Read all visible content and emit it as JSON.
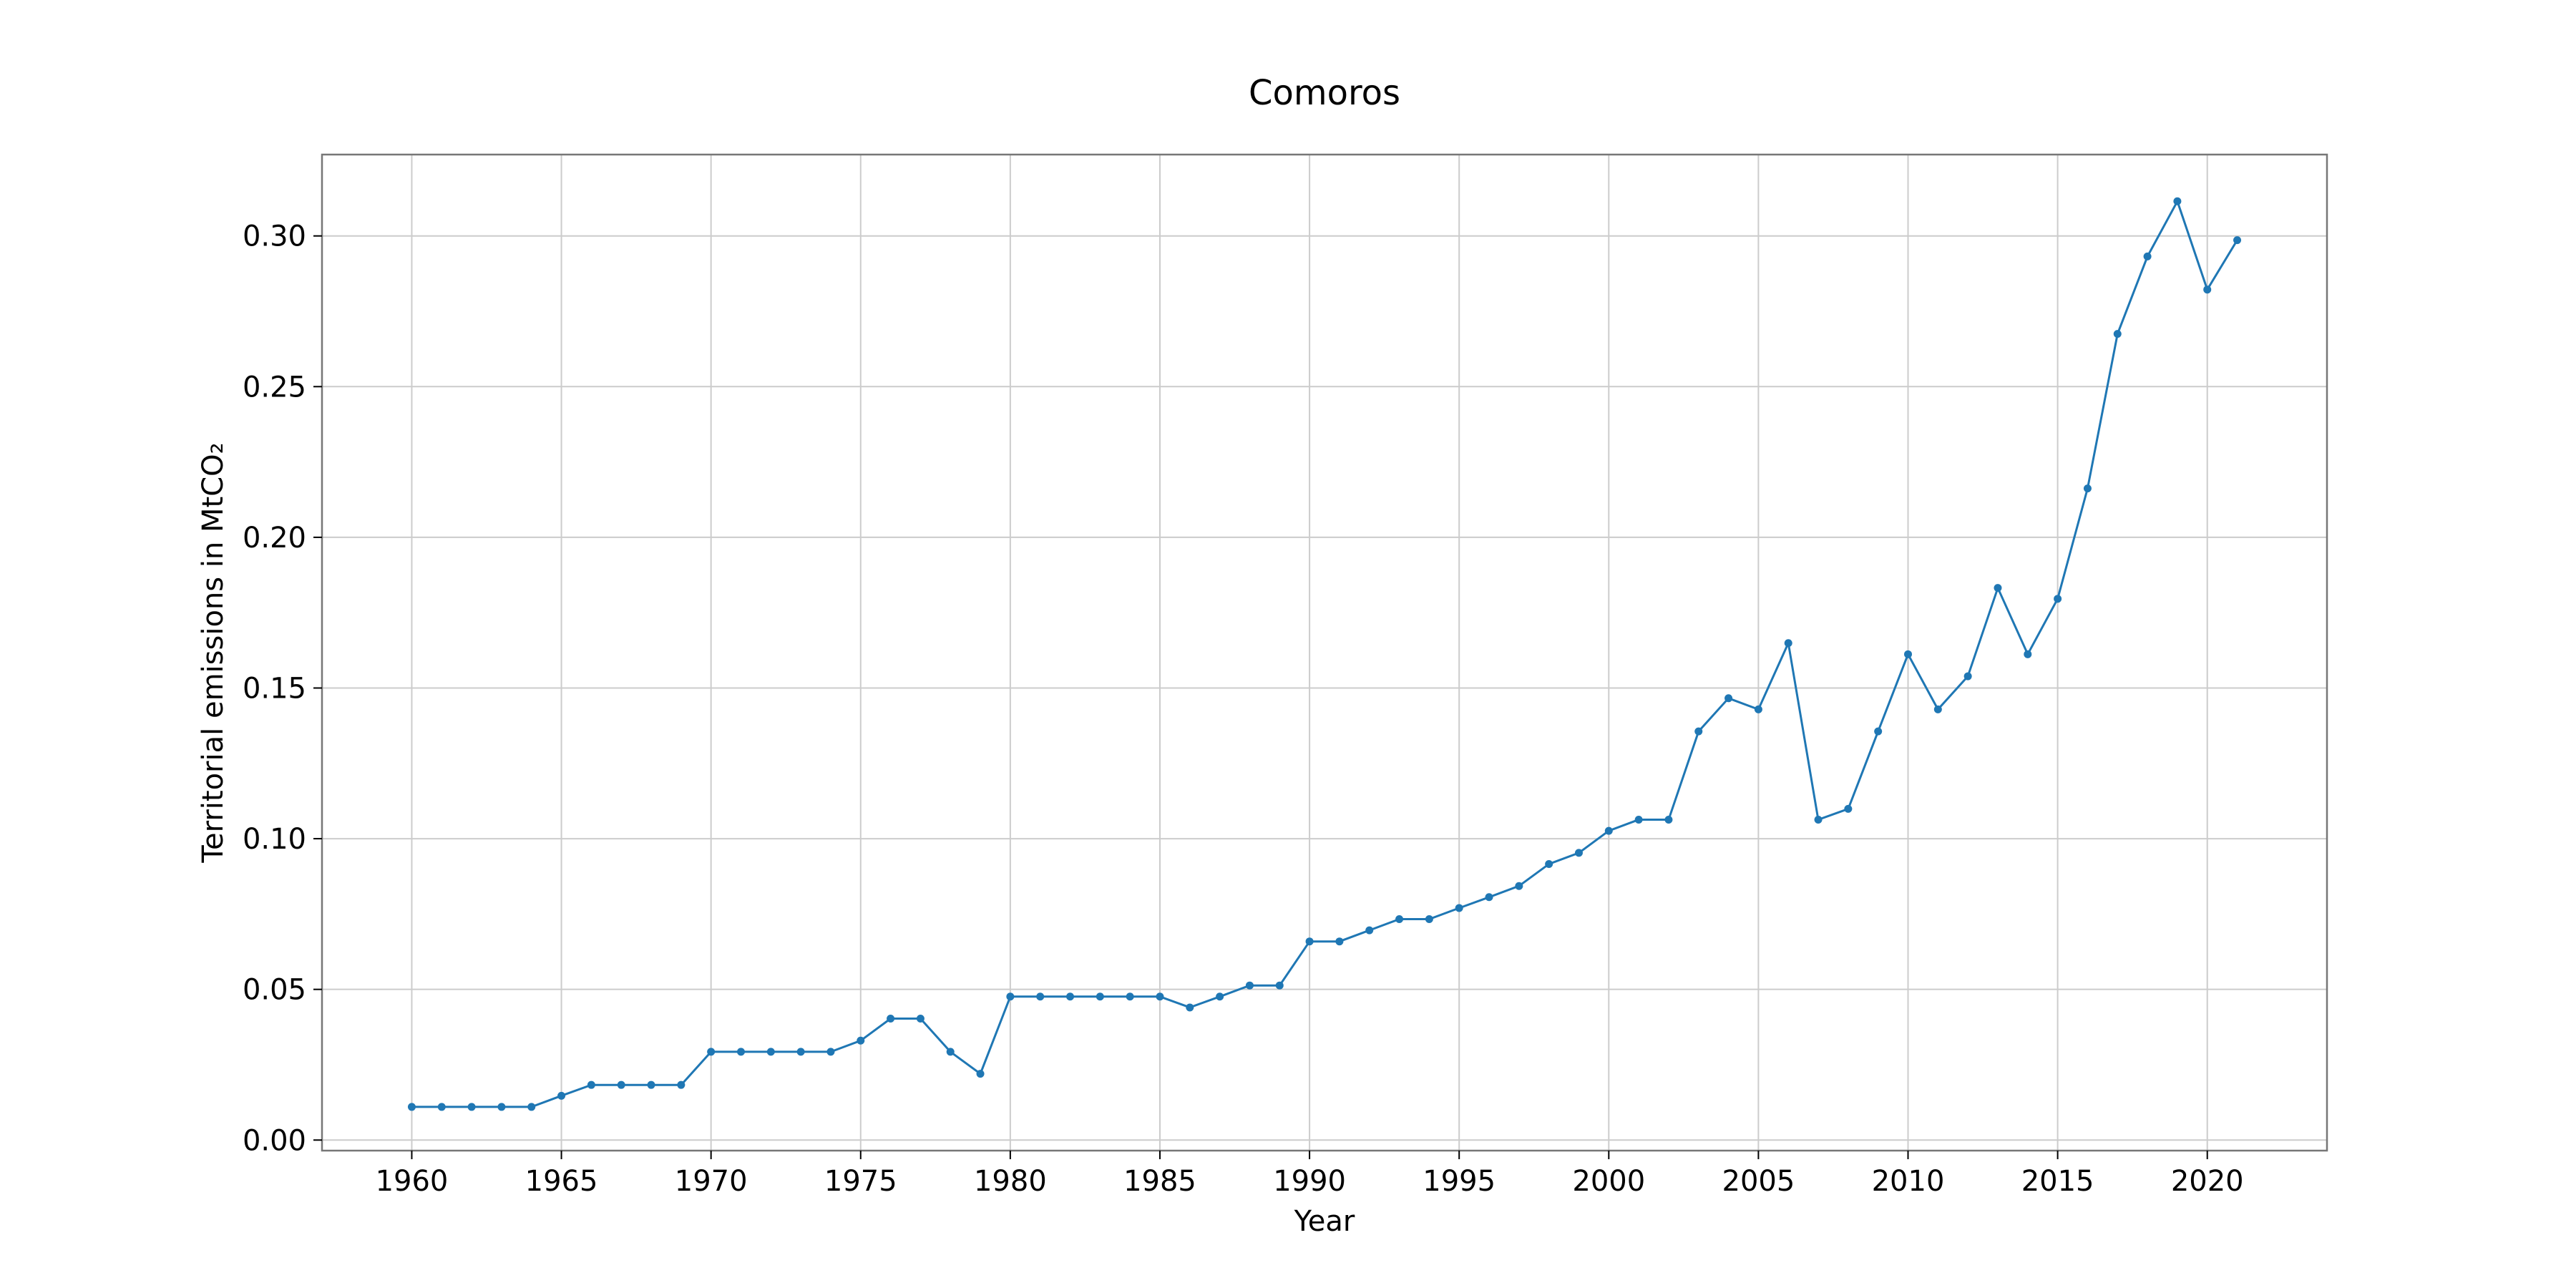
{
  "chart_data": {
    "type": "line",
    "title": "Comoros",
    "xlabel": "Year",
    "ylabel": "Territorial emissions in MtCO₂",
    "xlim": [
      1957,
      2024
    ],
    "ylim": [
      -0.0035,
      0.327
    ],
    "xticks": [
      1960,
      1965,
      1970,
      1975,
      1980,
      1985,
      1990,
      1995,
      2000,
      2005,
      2010,
      2015,
      2020
    ],
    "xtick_labels": [
      "1960",
      "1965",
      "1970",
      "1975",
      "1980",
      "1985",
      "1990",
      "1995",
      "2000",
      "2005",
      "2010",
      "2015",
      "2020"
    ],
    "yticks": [
      0.0,
      0.05,
      0.1,
      0.15,
      0.2,
      0.25,
      0.3
    ],
    "ytick_labels": [
      "0.00",
      "0.05",
      "0.10",
      "0.15",
      "0.20",
      "0.25",
      "0.30"
    ],
    "grid": true,
    "series": [
      {
        "color": "#1f77b4",
        "x": [
          1960,
          1961,
          1962,
          1963,
          1964,
          1965,
          1966,
          1967,
          1968,
          1969,
          1970,
          1971,
          1972,
          1973,
          1974,
          1975,
          1976,
          1977,
          1978,
          1979,
          1980,
          1981,
          1982,
          1983,
          1984,
          1985,
          1986,
          1987,
          1988,
          1989,
          1990,
          1991,
          1992,
          1993,
          1994,
          1995,
          1996,
          1997,
          1998,
          1999,
          2000,
          2001,
          2002,
          2003,
          2004,
          2005,
          2006,
          2007,
          2008,
          2009,
          2010,
          2011,
          2012,
          2013,
          2014,
          2015,
          2016,
          2017,
          2018,
          2019,
          2020,
          2021
        ],
        "y": [
          0.011,
          0.011,
          0.011,
          0.011,
          0.011,
          0.0147,
          0.0183,
          0.0183,
          0.0183,
          0.0183,
          0.0293,
          0.0293,
          0.0293,
          0.0293,
          0.0293,
          0.033,
          0.0403,
          0.0403,
          0.0293,
          0.022,
          0.0476,
          0.0476,
          0.0476,
          0.0476,
          0.0476,
          0.0476,
          0.044,
          0.0476,
          0.0513,
          0.0513,
          0.0659,
          0.0659,
          0.0696,
          0.0733,
          0.0733,
          0.077,
          0.0806,
          0.0843,
          0.0916,
          0.0953,
          0.1026,
          0.1063,
          0.1063,
          0.1356,
          0.1466,
          0.1429,
          0.1649,
          0.1063,
          0.1099,
          0.1356,
          0.1612,
          0.1429,
          0.1539,
          0.1832,
          0.1612,
          0.1796,
          0.2162,
          0.2675,
          0.2932,
          0.3115,
          0.2822,
          0.2986
        ]
      }
    ]
  }
}
